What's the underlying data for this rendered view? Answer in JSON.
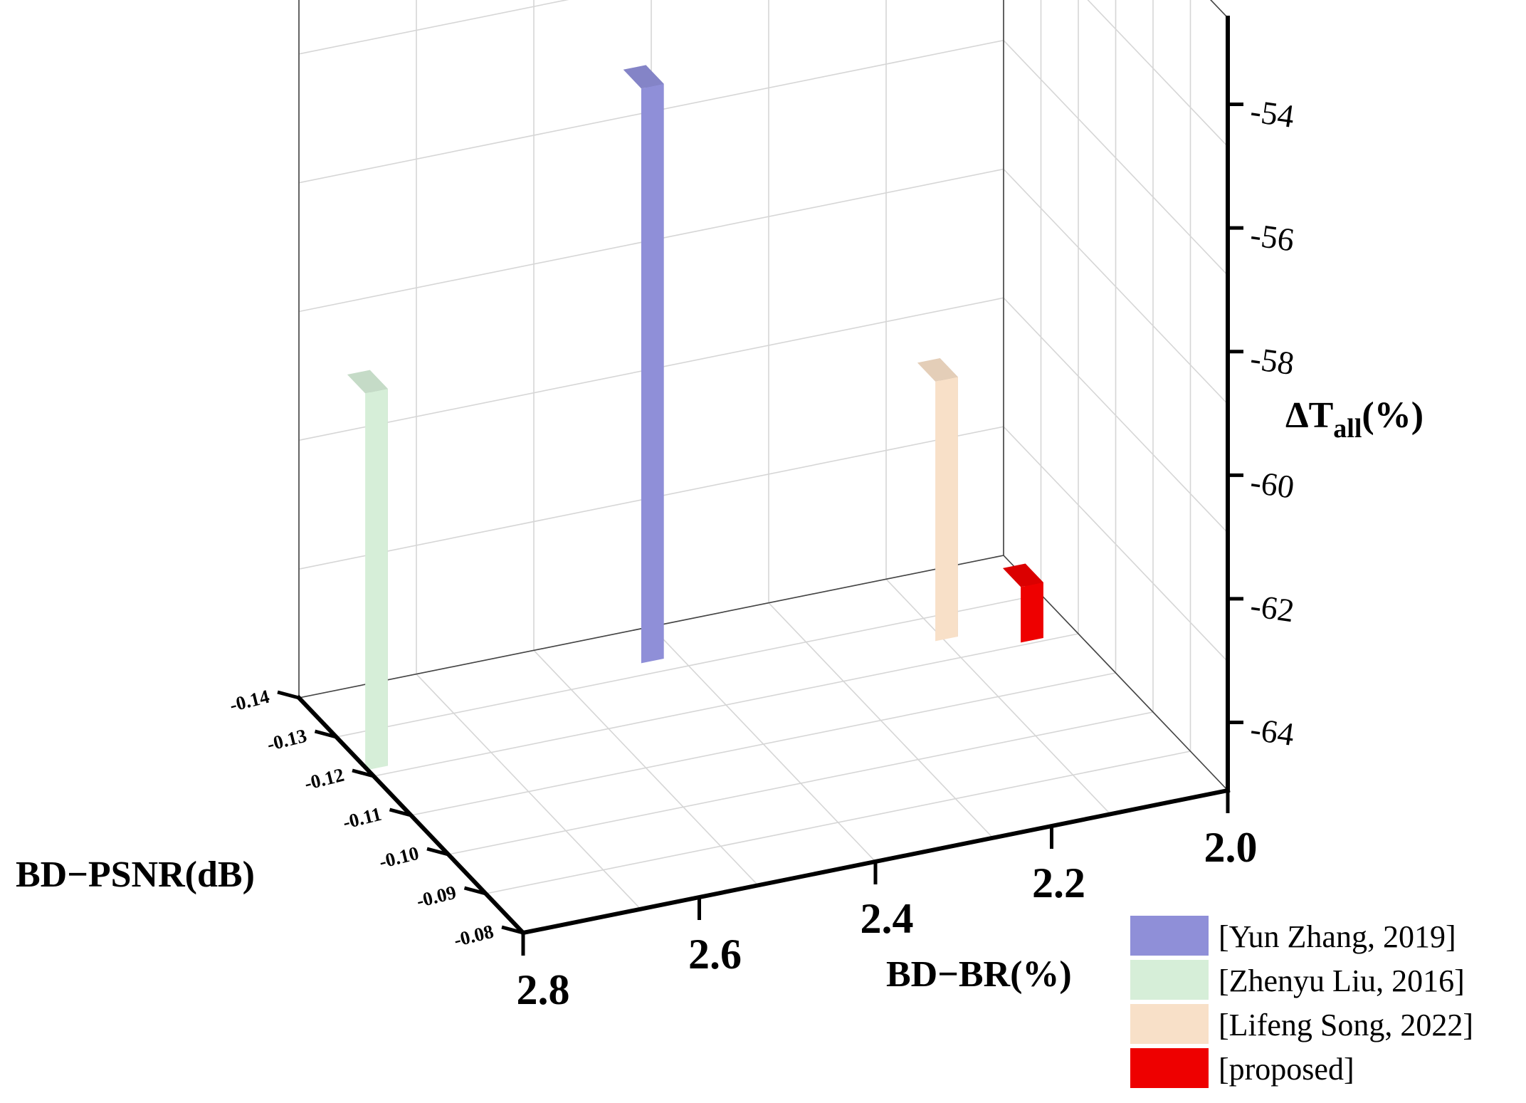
{
  "chart_data": {
    "type": "bar",
    "variant": "3d",
    "title": "",
    "xlabel": "BD−BR(%)",
    "ylabel": "BD−PSNR(dB)",
    "zlabel": "ΔT",
    "zlabel_sub": "all",
    "zlabel_suffix": "(%)",
    "x_ticks": [
      "2.8",
      "2.6",
      "2.4",
      "2.2",
      "2.0"
    ],
    "y_ticks": [
      "-0.14",
      "-0.13",
      "-0.12",
      "-0.11",
      "-0.10",
      "-0.09",
      "-0.08"
    ],
    "z_ticks": [
      "-54",
      "-56",
      "-58",
      "-60",
      "-62",
      "-64"
    ],
    "xlim": [
      2.8,
      2.0
    ],
    "ylim": [
      -0.14,
      -0.08
    ],
    "zlim": [
      -65.1,
      -52.6
    ],
    "grid": true,
    "legend_position": "bottom-right",
    "series": [
      {
        "name": "[Yun Zhang, 2019]",
        "bd_br": 2.43,
        "bd_psnr": -0.135,
        "delta_t": -55.8,
        "color": "#8f8fd8"
      },
      {
        "name": "[Zhenyu Liu, 2016]",
        "bd_br": 2.79,
        "bd_psnr": -0.124,
        "delta_t": -59.0,
        "color": "#d6eed8"
      },
      {
        "name": "[Lifeng Song, 2022]",
        "bd_br": 2.13,
        "bd_psnr": -0.127,
        "delta_t": -60.9,
        "color": "#f8e0c8"
      },
      {
        "name": "[proposed]",
        "bd_br": 2.05,
        "bd_psnr": -0.123,
        "delta_t": -64.2,
        "color": "#ee0000"
      }
    ]
  }
}
